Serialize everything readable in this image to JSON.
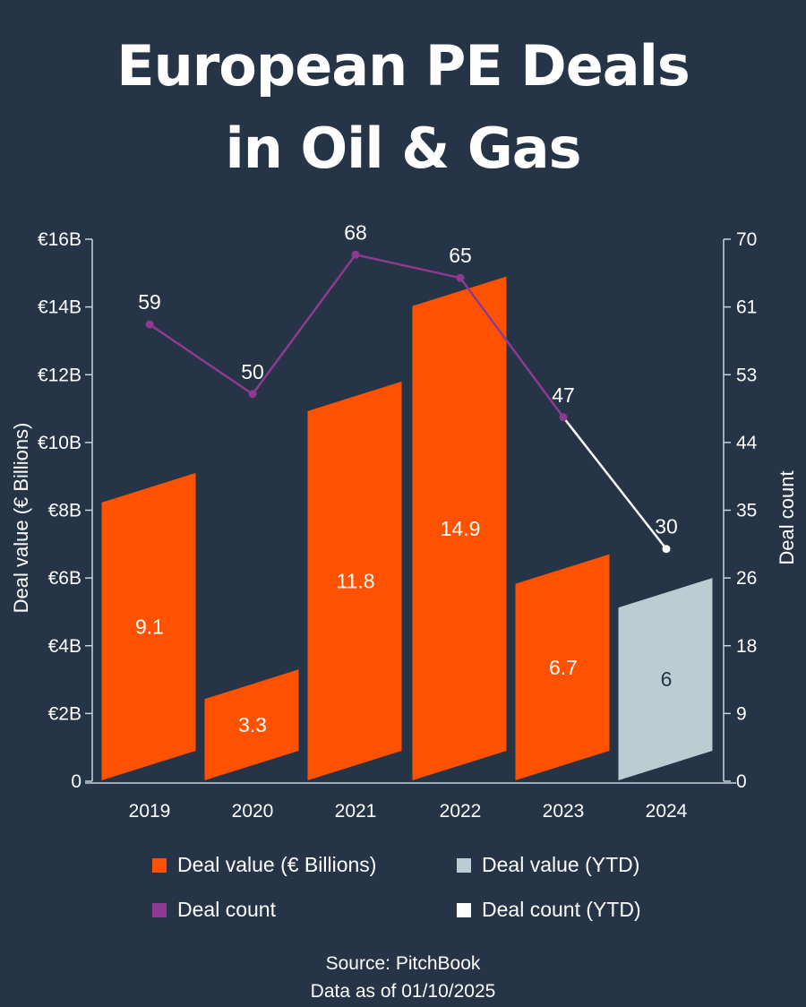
{
  "title": {
    "line1": "European PE Deals",
    "line2": "in Oil & Gas"
  },
  "colors": {
    "background": "#253446",
    "deal_value": "#FF5200",
    "deal_value_ytd": "#B9CDD2",
    "deal_count": "#8E3A91",
    "deal_count_ytd": "#FFFFFF",
    "axis": "#C9D3DA"
  },
  "axes": {
    "left_title": "Deal value (€ Billions)",
    "right_title": "Deal count",
    "left_ticks": [
      "0",
      "€2B",
      "€4B",
      "€6B",
      "€8B",
      "€10B",
      "€12B",
      "€14B",
      "€16B"
    ],
    "right_ticks": [
      "0",
      "9",
      "18",
      "26",
      "35",
      "44",
      "53",
      "61",
      "70"
    ],
    "x_ticks": [
      "2019",
      "2020",
      "2021",
      "2022",
      "2023",
      "2024"
    ]
  },
  "bars": [
    {
      "year": "2019",
      "label": "9.1"
    },
    {
      "year": "2020",
      "label": "3.3"
    },
    {
      "year": "2021",
      "label": "11.8"
    },
    {
      "year": "2022",
      "label": "14.9"
    },
    {
      "year": "2023",
      "label": "6.7"
    },
    {
      "year": "2024",
      "label": "6"
    }
  ],
  "points": [
    {
      "year": "2019",
      "label": "59"
    },
    {
      "year": "2020",
      "label": "50"
    },
    {
      "year": "2021",
      "label": "68"
    },
    {
      "year": "2022",
      "label": "65"
    },
    {
      "year": "2023",
      "label": "47"
    },
    {
      "year": "2024",
      "label": "30"
    }
  ],
  "legend": {
    "deal_value": "Deal value (€ Billions)",
    "deal_value_ytd": "Deal value (YTD)",
    "deal_count": "Deal count",
    "deal_count_ytd": "Deal count (YTD)"
  },
  "footer": {
    "source": "Source: PitchBook",
    "as_of": "Data as of 01/10/2025"
  },
  "chart_data": {
    "type": "bar",
    "title": "European PE Deals in Oil & Gas",
    "categories": [
      "2019",
      "2020",
      "2021",
      "2022",
      "2023",
      "2024"
    ],
    "series": [
      {
        "name": "Deal value (€ Billions)",
        "type": "bar",
        "axis": "left",
        "values": [
          9.1,
          3.3,
          11.8,
          14.9,
          6.7,
          null
        ]
      },
      {
        "name": "Deal value (YTD)",
        "type": "bar",
        "axis": "left",
        "values": [
          null,
          null,
          null,
          null,
          null,
          6
        ]
      },
      {
        "name": "Deal count",
        "type": "line",
        "axis": "right",
        "values": [
          59,
          50,
          68,
          65,
          47,
          null
        ]
      },
      {
        "name": "Deal count (YTD)",
        "type": "line",
        "axis": "right",
        "values": [
          null,
          null,
          null,
          null,
          47,
          30
        ]
      }
    ],
    "xlabel": "",
    "ylabel": "Deal value (€ Billions)",
    "ylabel_right": "Deal count",
    "ylim": [
      0,
      16
    ],
    "ylim_right": [
      0,
      70
    ],
    "yticks": [
      "0",
      "€2B",
      "€4B",
      "€6B",
      "€8B",
      "€10B",
      "€12B",
      "€14B",
      "€16B"
    ],
    "yticks_right": [
      0,
      9,
      18,
      26,
      35,
      44,
      53,
      61,
      70
    ],
    "grid": false,
    "legend_position": "bottom",
    "source": "Source: PitchBook",
    "note": "Data as of 01/10/2025"
  }
}
